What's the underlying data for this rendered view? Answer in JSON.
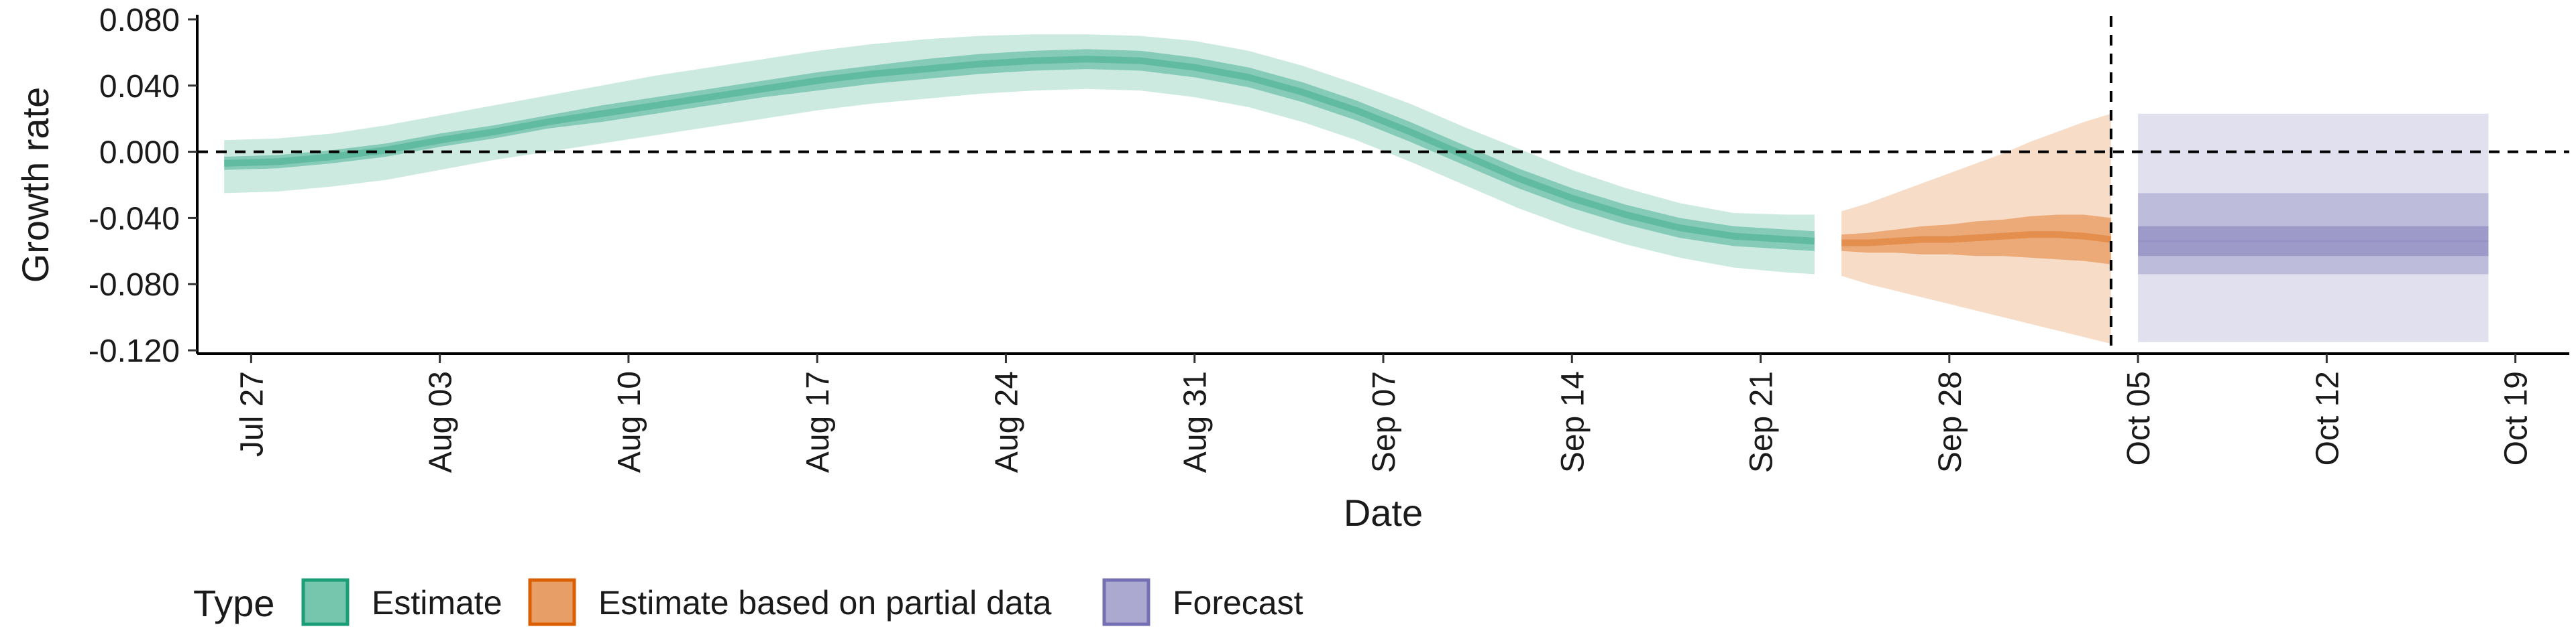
{
  "chart_data": {
    "type": "area",
    "xlabel": "Date",
    "ylabel": "Growth rate",
    "x_axis_type": "date",
    "xlim": [
      "2020-07-25",
      "2020-10-21"
    ],
    "ylim": [
      -0.122,
      0.082
    ],
    "yticks": [
      0.08,
      0.04,
      0.0,
      -0.04,
      -0.08,
      -0.12
    ],
    "ytick_labels": [
      "0.080",
      "0.040",
      "0.000",
      "-0.040",
      "-0.080",
      "-0.120"
    ],
    "xticks": [
      "2020-07-27",
      "2020-08-03",
      "2020-08-10",
      "2020-08-17",
      "2020-08-24",
      "2020-08-31",
      "2020-09-07",
      "2020-09-14",
      "2020-09-21",
      "2020-09-28",
      "2020-10-05",
      "2020-10-12",
      "2020-10-19"
    ],
    "xtick_labels": [
      "Jul 27",
      "Aug 03",
      "Aug 10",
      "Aug 17",
      "Aug 24",
      "Aug 31",
      "Sep 07",
      "Sep 14",
      "Sep 21",
      "Sep 28",
      "Oct 05",
      "Oct 12",
      "Oct 19"
    ],
    "grid": false,
    "hline": 0.0,
    "vline": "2020-10-04",
    "legend": {
      "title": "Type",
      "placement": "bottom",
      "items": [
        {
          "label": "Estimate",
          "color": "#1B9E77"
        },
        {
          "label": "Estimate based on partial data",
          "color": "#D95F02"
        },
        {
          "label": "Forecast",
          "color": "#7570B3"
        }
      ]
    },
    "series": [
      {
        "type_name": "Estimate",
        "color": "#1B9E77",
        "dates": [
          "2020-07-26",
          "2020-07-28",
          "2020-07-30",
          "2020-08-01",
          "2020-08-03",
          "2020-08-05",
          "2020-08-07",
          "2020-08-09",
          "2020-08-11",
          "2020-08-13",
          "2020-08-15",
          "2020-08-17",
          "2020-08-19",
          "2020-08-21",
          "2020-08-23",
          "2020-08-25",
          "2020-08-27",
          "2020-08-29",
          "2020-08-31",
          "2020-09-02",
          "2020-09-04",
          "2020-09-06",
          "2020-09-08",
          "2020-09-10",
          "2020-09-12",
          "2020-09-14",
          "2020-09-16",
          "2020-09-18",
          "2020-09-20",
          "2020-09-22",
          "2020-09-23"
        ],
        "median": [
          -0.007,
          -0.006,
          -0.003,
          0.001,
          0.007,
          0.012,
          0.018,
          0.023,
          0.028,
          0.033,
          0.038,
          0.043,
          0.047,
          0.05,
          0.053,
          0.055,
          0.056,
          0.055,
          0.051,
          0.045,
          0.036,
          0.025,
          0.012,
          -0.002,
          -0.016,
          -0.028,
          -0.038,
          -0.046,
          -0.051,
          -0.053,
          -0.054
        ],
        "inner": [
          [
            -0.011,
            -0.003
          ],
          [
            -0.01,
            -0.002
          ],
          [
            -0.007,
            0.001
          ],
          [
            -0.003,
            0.005
          ],
          [
            0.003,
            0.011
          ],
          [
            0.008,
            0.016
          ],
          [
            0.014,
            0.022
          ],
          [
            0.018,
            0.028
          ],
          [
            0.023,
            0.033
          ],
          [
            0.028,
            0.038
          ],
          [
            0.033,
            0.043
          ],
          [
            0.037,
            0.048
          ],
          [
            0.041,
            0.052
          ],
          [
            0.044,
            0.056
          ],
          [
            0.047,
            0.059
          ],
          [
            0.049,
            0.061
          ],
          [
            0.05,
            0.062
          ],
          [
            0.049,
            0.061
          ],
          [
            0.045,
            0.057
          ],
          [
            0.039,
            0.051
          ],
          [
            0.03,
            0.042
          ],
          [
            0.019,
            0.031
          ],
          [
            0.006,
            0.018
          ],
          [
            -0.008,
            0.004
          ],
          [
            -0.022,
            -0.01
          ],
          [
            -0.034,
            -0.022
          ],
          [
            -0.044,
            -0.032
          ],
          [
            -0.052,
            -0.04
          ],
          [
            -0.057,
            -0.045
          ],
          [
            -0.059,
            -0.047
          ],
          [
            -0.06,
            -0.048
          ]
        ],
        "outer": [
          [
            -0.025,
            0.007
          ],
          [
            -0.024,
            0.008
          ],
          [
            -0.021,
            0.011
          ],
          [
            -0.017,
            0.016
          ],
          [
            -0.011,
            0.022
          ],
          [
            -0.005,
            0.028
          ],
          [
            0.0,
            0.034
          ],
          [
            0.005,
            0.04
          ],
          [
            0.01,
            0.046
          ],
          [
            0.015,
            0.051
          ],
          [
            0.02,
            0.056
          ],
          [
            0.025,
            0.061
          ],
          [
            0.029,
            0.065
          ],
          [
            0.032,
            0.068
          ],
          [
            0.035,
            0.07
          ],
          [
            0.037,
            0.071
          ],
          [
            0.038,
            0.071
          ],
          [
            0.037,
            0.07
          ],
          [
            0.033,
            0.067
          ],
          [
            0.027,
            0.061
          ],
          [
            0.018,
            0.052
          ],
          [
            0.007,
            0.041
          ],
          [
            -0.006,
            0.029
          ],
          [
            -0.02,
            0.015
          ],
          [
            -0.034,
            0.002
          ],
          [
            -0.046,
            -0.011
          ],
          [
            -0.056,
            -0.022
          ],
          [
            -0.064,
            -0.031
          ],
          [
            -0.07,
            -0.037
          ],
          [
            -0.073,
            -0.038
          ],
          [
            -0.074,
            -0.038
          ]
        ]
      },
      {
        "type_name": "Estimate based on partial data",
        "color": "#D95F02",
        "dates": [
          "2020-09-24",
          "2020-09-25",
          "2020-09-26",
          "2020-09-27",
          "2020-09-28",
          "2020-09-29",
          "2020-09-30",
          "2020-10-01",
          "2020-10-02",
          "2020-10-03",
          "2020-10-04"
        ],
        "median": [
          -0.055,
          -0.055,
          -0.054,
          -0.053,
          -0.053,
          -0.052,
          -0.051,
          -0.05,
          -0.05,
          -0.051,
          -0.053
        ],
        "inner": [
          [
            -0.06,
            -0.05
          ],
          [
            -0.061,
            -0.049
          ],
          [
            -0.061,
            -0.047
          ],
          [
            -0.062,
            -0.045
          ],
          [
            -0.062,
            -0.044
          ],
          [
            -0.063,
            -0.042
          ],
          [
            -0.063,
            -0.041
          ],
          [
            -0.064,
            -0.039
          ],
          [
            -0.065,
            -0.038
          ],
          [
            -0.066,
            -0.038
          ],
          [
            -0.068,
            -0.04
          ]
        ],
        "outer": [
          [
            -0.075,
            -0.036
          ],
          [
            -0.08,
            -0.031
          ],
          [
            -0.084,
            -0.025
          ],
          [
            -0.088,
            -0.019
          ],
          [
            -0.092,
            -0.013
          ],
          [
            -0.096,
            -0.007
          ],
          [
            -0.1,
            -0.001
          ],
          [
            -0.104,
            0.006
          ],
          [
            -0.108,
            0.012
          ],
          [
            -0.112,
            0.018
          ],
          [
            -0.116,
            0.023
          ]
        ]
      },
      {
        "type_name": "Forecast",
        "color": "#7570B3",
        "dates": [
          "2020-10-05",
          "2020-10-18"
        ],
        "median": [
          -0.054,
          -0.054
        ],
        "inner": [
          [
            -0.063,
            -0.045
          ],
          [
            -0.063,
            -0.045
          ]
        ],
        "middle": [
          [
            -0.074,
            -0.025
          ],
          [
            -0.074,
            -0.025
          ]
        ],
        "outer": [
          [
            -0.115,
            0.023
          ],
          [
            -0.115,
            0.023
          ]
        ]
      }
    ]
  }
}
